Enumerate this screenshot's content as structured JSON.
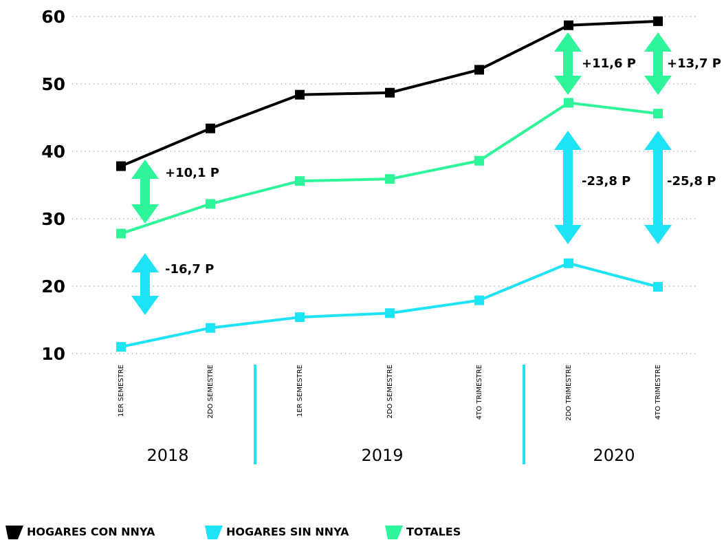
{
  "chart_data": {
    "type": "line",
    "categories": [
      "1ER SEMESTRE",
      "2DO SEMESTRE",
      "1ER SEMESTRE",
      "2DO SEMESTRE",
      "4TO TRIMESTRE",
      "2DO TRIMESTRE",
      "4TO TRIMESTRE"
    ],
    "groups": [
      "2018",
      "2019",
      "2020"
    ],
    "series": [
      {
        "name": "HOGARES CON NNYA",
        "color": "#000000",
        "values": [
          37.8,
          43.4,
          48.4,
          48.7,
          52.1,
          58.7,
          59.3
        ]
      },
      {
        "name": "HOGARES SIN NNYA",
        "color": "#1ee3f5",
        "values": [
          11.0,
          13.8,
          15.4,
          16.0,
          17.9,
          23.4,
          19.9
        ]
      },
      {
        "name": "TOTALES",
        "color": "#2ef59a",
        "values": [
          27.8,
          32.2,
          35.6,
          35.9,
          38.6,
          47.2,
          45.6
        ]
      }
    ],
    "annotations": [
      "+10,1 P",
      "-16,7 P",
      "+11,6 P",
      "-23,8 P",
      "+13,7 P",
      "-25,8 P"
    ],
    "ylim": [
      10,
      60
    ],
    "yticks": [
      10,
      20,
      30,
      40,
      50,
      60
    ],
    "grid": true
  }
}
